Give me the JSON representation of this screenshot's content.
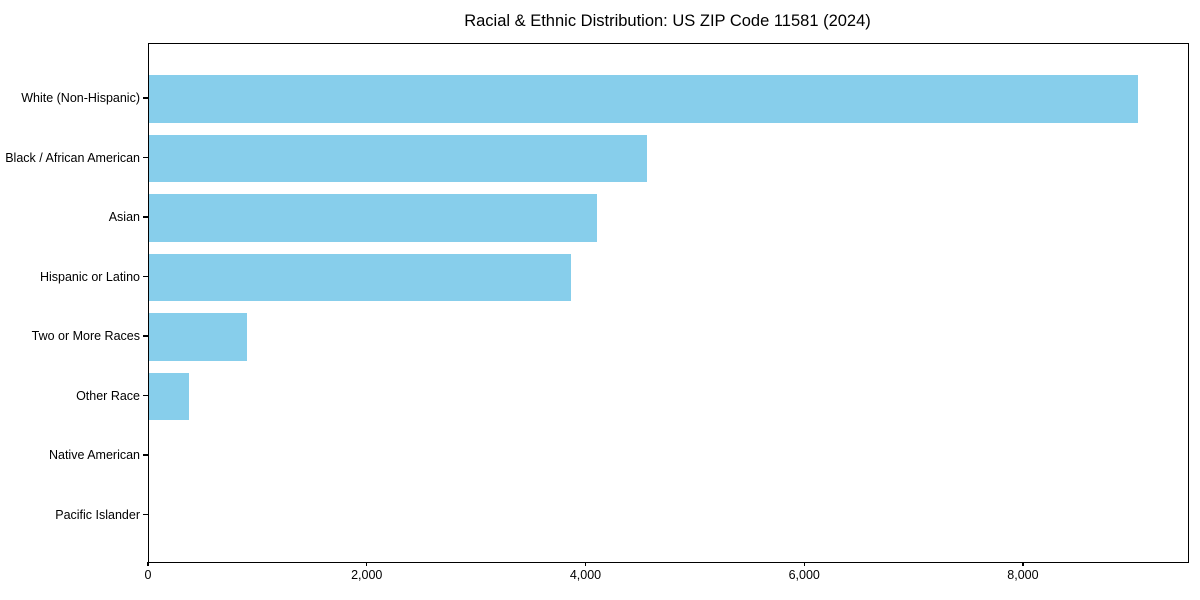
{
  "chart_data": {
    "type": "bar",
    "orientation": "horizontal",
    "title": "Racial & Ethnic Distribution: US ZIP Code 11581 (2024)",
    "categories": [
      "White (Non-Hispanic)",
      "Black / African American",
      "Asian",
      "Hispanic or Latino",
      "Two or More Races",
      "Other Race",
      "Native American",
      "Pacific Islander"
    ],
    "values": [
      9040,
      4550,
      4100,
      3860,
      900,
      370,
      0,
      0
    ],
    "xlabel": "",
    "ylabel": "",
    "xlim": [
      0,
      9500
    ],
    "x_ticks": [
      0,
      2000,
      4000,
      6000,
      8000
    ],
    "x_tick_labels": [
      "0",
      "2,000",
      "4,000",
      "6,000",
      "8,000"
    ],
    "bar_color": "#87CEEB",
    "background_color": "#ffffff",
    "grid": false,
    "legend": "none",
    "bar_fraction": 0.8
  }
}
